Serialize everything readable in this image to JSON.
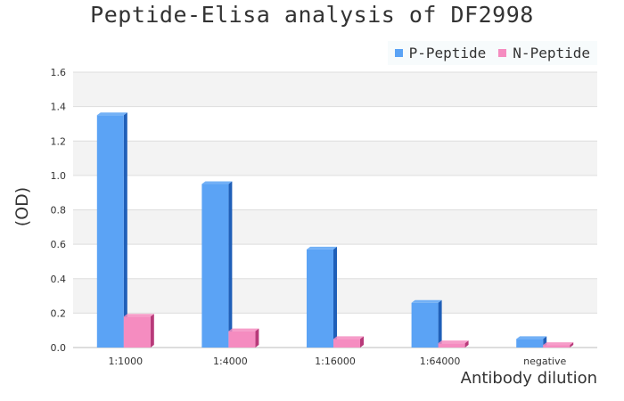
{
  "chart_data": {
    "type": "bar",
    "title": "Peptide-Elisa analysis of DF2998",
    "xlabel": "Antibody dilution",
    "ylabel": "(OD)",
    "categories": [
      "1:1000",
      "1:4000",
      "1:16000",
      "1:64000",
      "negative"
    ],
    "series": [
      {
        "name": "P-Peptide",
        "values": [
          1.35,
          0.95,
          0.57,
          0.26,
          0.05
        ],
        "color": "#5ba3f5",
        "side_color": "#1f5fb8"
      },
      {
        "name": "N-Peptide",
        "values": [
          0.18,
          0.095,
          0.05,
          0.025,
          0.015
        ],
        "color": "#f58cc0",
        "side_color": "#b83a7a"
      }
    ],
    "ylim": [
      0,
      1.6
    ],
    "yticks": [
      "0.0",
      "0.2",
      "0.4",
      "0.6",
      "0.8",
      "1.0",
      "1.2",
      "1.4",
      "1.6"
    ],
    "grid": true,
    "legend_position": "top-right"
  }
}
